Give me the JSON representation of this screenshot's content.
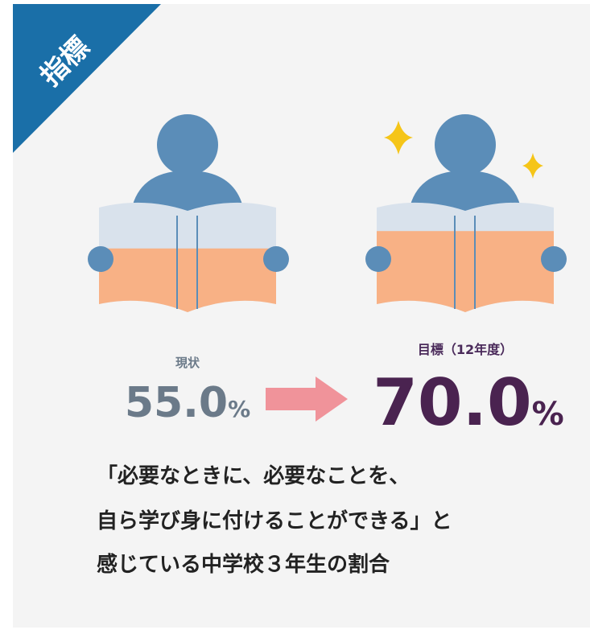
{
  "badge": "指標",
  "current": {
    "label": "現状",
    "value": 55.0,
    "value_label": "55.0",
    "unit": "%"
  },
  "target": {
    "label": "目標（12年度）",
    "value": 70.0,
    "value_label": "70.0",
    "unit": "%"
  },
  "caption": [
    "「必要なときに、必要なことを、",
    "自ら学び身に付けることができる」と",
    "感じている中学校３年生の割合"
  ]
}
